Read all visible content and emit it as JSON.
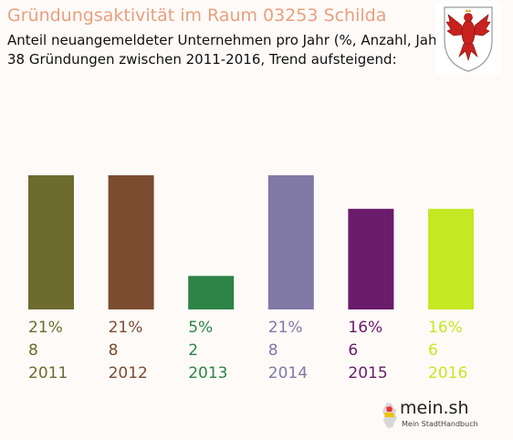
{
  "header": {
    "title": "Gründungsaktivität im Raum 03253 Schilda",
    "subtitle_line1": "Anteil neuangemeldeter Unternehmen pro Jahr (%, Anzahl, Jahr)",
    "subtitle_line2": "38 Gründungen zwischen 2011-2016, Trend aufsteigend:"
  },
  "branding": {
    "logo_text": "mein.sh",
    "logo_tagline": "Mein StadtHandbuch",
    "crest_icon": "brandenburg-eagle-crest-icon"
  },
  "chart_data": {
    "type": "bar",
    "title": "Gründungsaktivität im Raum 03253 Schilda",
    "categories": [
      "2011",
      "2012",
      "2013",
      "2014",
      "2015",
      "2016"
    ],
    "percent_labels": [
      "21%",
      "21%",
      "5%",
      "21%",
      "16%",
      "16%"
    ],
    "values": [
      8,
      8,
      2,
      8,
      6,
      6
    ],
    "colors": [
      "#6e6b2f",
      "#7b4c30",
      "#2e8447",
      "#8079a6",
      "#6b1b6c",
      "#c4e823"
    ],
    "ylim": [
      0,
      8
    ],
    "grid": false,
    "legend": "none"
  }
}
